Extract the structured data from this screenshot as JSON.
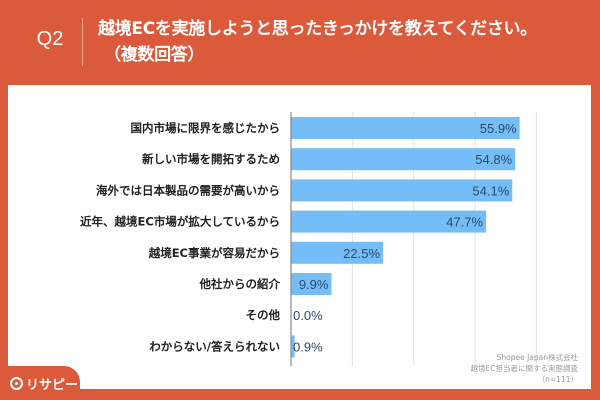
{
  "header": {
    "question_number": "Q2",
    "title": "越境ECを実施しようと思ったきっかけを教えてください。",
    "subtitle": "（複数回答）"
  },
  "logo": {
    "icon": "magnifier-pin-icon",
    "text": "リサピー"
  },
  "source": {
    "line1": "Shopee Japan株式会社",
    "line2": "越境EC担当者に関する実態調査",
    "line3": "（n=111）"
  },
  "colors": {
    "background": "#dc5a3c",
    "bar": "#74bdf6",
    "value_text": "#2d4a6e"
  },
  "chart_data": {
    "type": "bar",
    "orientation": "horizontal",
    "title": "越境ECを実施しようと思ったきっかけを教えてください。（複数回答）",
    "xlabel": "",
    "ylabel": "",
    "xlim": [
      0,
      60
    ],
    "gridlines": [
      0,
      15,
      30,
      45,
      60
    ],
    "grid": true,
    "unit": "%",
    "categories": [
      "国内市場に限界を感じたから",
      "新しい市場を開拓するため",
      "海外では日本製品の需要が高いから",
      "近年、越境EC市場が拡大しているから",
      "越境EC事業が容易だから",
      "他社からの紹介",
      "その他",
      "わからない/答えられない"
    ],
    "values": [
      55.9,
      54.8,
      54.1,
      47.7,
      22.5,
      9.9,
      0.0,
      0.9
    ],
    "value_labels": [
      "55.9%",
      "54.8%",
      "54.1%",
      "47.7%",
      "22.5%",
      "9.9%",
      "0.0%",
      "0.9%"
    ]
  }
}
